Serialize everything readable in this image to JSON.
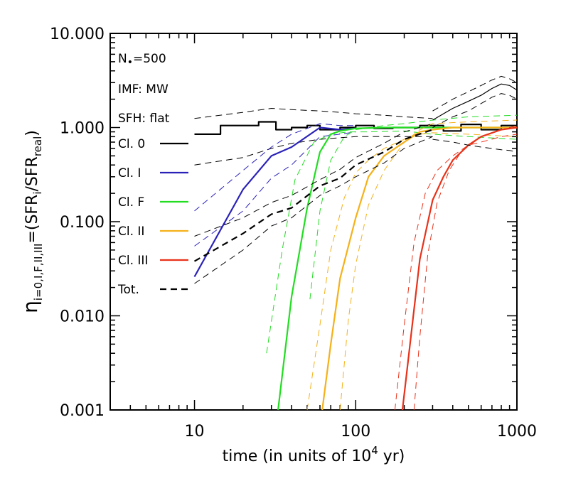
{
  "chart_data": {
    "type": "line",
    "xlabel": "time (in units of 10",
    "xlabel_sup": "4",
    "xlabel_tail": " yr)",
    "ylabel": {
      "eta": "η",
      "sub": "i=0,I,F,II,III",
      "eq": "=(SFR",
      "sub2": "i",
      "mid": "/SFR",
      "sub3": "real",
      "close": ")"
    },
    "x_scale": "log",
    "y_scale": "log",
    "xlim": [
      3,
      1000
    ],
    "ylim": [
      0.001,
      10
    ],
    "x_ticks": [
      10,
      100,
      1000
    ],
    "x_tick_labels": [
      "10",
      "100",
      "1000"
    ],
    "y_ticks": [
      0.001,
      0.01,
      0.1,
      1,
      10
    ],
    "y_tick_labels": [
      "0.001",
      "0.010",
      "0.100",
      "1.000",
      "10.000"
    ],
    "annotations": {
      "nstar": "N",
      "nstar_sub": "•",
      "nstar_val": "=500",
      "imf": "IMF: MW",
      "sfh": "SFH: flat"
    },
    "legend_placement": "left",
    "series": [
      {
        "name": "Cl. 0",
        "color": "#000000",
        "dash": "solid",
        "step": true,
        "x": [
          10,
          14.5,
          14.5,
          25,
          25,
          32,
          32,
          40,
          40,
          50,
          50,
          60,
          60,
          80,
          80,
          100,
          100,
          130,
          130,
          170,
          170,
          250,
          250,
          350,
          350,
          450,
          450,
          600,
          600,
          800,
          800,
          1000
        ],
        "y": [
          0.85,
          0.85,
          1.05,
          1.05,
          1.15,
          1.15,
          0.95,
          0.95,
          1.0,
          1.0,
          1.05,
          1.05,
          0.95,
          0.95,
          1.0,
          1.0,
          1.05,
          1.05,
          0.98,
          0.98,
          1.0,
          1.0,
          1.05,
          1.05,
          0.92,
          0.92,
          1.08,
          1.08,
          0.95,
          0.95,
          1.05,
          1.05
        ],
        "lower": {
          "x": [
            10,
            20,
            30,
            40,
            60,
            80,
            100,
            150,
            200,
            300
          ],
          "y": [
            0.4,
            0.48,
            0.6,
            0.68,
            0.75,
            0.78,
            0.8,
            0.8,
            0.8,
            0.8
          ]
        },
        "upper": {
          "x": [
            10,
            20,
            30,
            40,
            60,
            80,
            100,
            150,
            200,
            300
          ],
          "y": [
            1.25,
            1.45,
            1.6,
            1.55,
            1.5,
            1.45,
            1.4,
            1.35,
            1.3,
            1.25
          ]
        }
      },
      {
        "name": "Cl. I",
        "color": "#2a22b8",
        "dash": "solid",
        "step": false,
        "x": [
          10,
          20,
          30,
          40,
          60,
          80,
          100
        ],
        "y": [
          0.026,
          0.22,
          0.5,
          0.62,
          1.0,
          0.95,
          0.98
        ],
        "lower": {
          "x": [
            10,
            20,
            30,
            40,
            60,
            80,
            100
          ],
          "y": [
            0.055,
            0.13,
            0.29,
            0.4,
            0.8,
            0.85,
            0.9
          ]
        },
        "upper": {
          "x": [
            10,
            20,
            30,
            40,
            60,
            80,
            100
          ],
          "y": [
            0.13,
            0.35,
            0.62,
            0.85,
            1.1,
            1.05,
            1.05
          ]
        }
      },
      {
        "name": "Cl. F",
        "color": "#22dd22",
        "dash": "solid",
        "step": false,
        "x": [
          33,
          40,
          50,
          60,
          70,
          80,
          100,
          150,
          200,
          300,
          500,
          700,
          1000
        ],
        "y": [
          0.001,
          0.016,
          0.14,
          0.55,
          0.85,
          0.92,
          0.98,
          1.0,
          1.0,
          1.0,
          1.0,
          1.0,
          1.0
        ],
        "lower": {
          "x": [
            28,
            35,
            42,
            55,
            70,
            90,
            120,
            200,
            300,
            500,
            1000
          ],
          "y": [
            0.004,
            0.05,
            0.28,
            0.7,
            0.85,
            0.9,
            0.9,
            0.92,
            0.85,
            0.8,
            0.75
          ]
        },
        "upper": {
          "x": [
            52,
            60,
            70,
            85,
            100,
            150,
            200,
            300,
            500,
            1000
          ],
          "y": [
            0.015,
            0.13,
            0.45,
            0.8,
            0.95,
            1.05,
            1.1,
            1.2,
            1.3,
            1.35
          ]
        }
      },
      {
        "name": "Cl. II",
        "color": "#f5b11a",
        "dash": "solid",
        "step": false,
        "x": [
          62,
          70,
          80,
          100,
          120,
          150,
          200,
          250,
          300,
          400,
          600,
          1000
        ],
        "y": [
          0.001,
          0.005,
          0.025,
          0.11,
          0.3,
          0.5,
          0.7,
          0.9,
          0.95,
          1.0,
          1.0,
          1.0
        ],
        "lower": {
          "x": [
            50,
            60,
            70,
            85,
            100,
            120,
            150,
            200,
            250,
            300,
            500,
            1000
          ],
          "y": [
            0.001,
            0.008,
            0.05,
            0.18,
            0.33,
            0.45,
            0.6,
            0.75,
            0.85,
            0.88,
            0.85,
            0.8
          ]
        },
        "upper": {
          "x": [
            80,
            90,
            100,
            120,
            150,
            200,
            250,
            300,
            500,
            1000
          ],
          "y": [
            0.001,
            0.009,
            0.035,
            0.15,
            0.35,
            0.7,
            0.95,
            1.1,
            1.15,
            1.2
          ]
        }
      },
      {
        "name": "Cl. III",
        "color": "#e8321a",
        "dash": "solid",
        "step": false,
        "x": [
          195,
          220,
          250,
          300,
          350,
          400,
          500,
          600,
          800,
          1000
        ],
        "y": [
          0.001,
          0.006,
          0.04,
          0.17,
          0.3,
          0.45,
          0.65,
          0.8,
          0.95,
          1.0
        ],
        "lower": {
          "x": [
            175,
            200,
            230,
            270,
            320,
            400,
            500,
            600,
            800,
            1000
          ],
          "y": [
            0.001,
            0.008,
            0.06,
            0.2,
            0.35,
            0.5,
            0.65,
            0.7,
            0.8,
            0.85
          ]
        },
        "upper": {
          "x": [
            230,
            250,
            280,
            320,
            380,
            450,
            600,
            800,
            1000
          ],
          "y": [
            0.001,
            0.006,
            0.045,
            0.16,
            0.35,
            0.55,
            0.8,
            0.95,
            1.05
          ]
        }
      },
      {
        "name": "Tot.",
        "color": "#000000",
        "dash": "dashed",
        "step": false,
        "x": [
          10,
          20,
          30,
          40,
          60,
          80,
          100,
          150,
          200,
          300
        ],
        "y": [
          0.038,
          0.075,
          0.12,
          0.14,
          0.24,
          0.29,
          0.4,
          0.55,
          0.75,
          0.95
        ],
        "lower": {
          "x": [
            10,
            20,
            30,
            40,
            60,
            80,
            100,
            150,
            200,
            300
          ],
          "y": [
            0.022,
            0.05,
            0.09,
            0.11,
            0.19,
            0.24,
            0.3,
            0.42,
            0.6,
            0.8
          ]
        },
        "upper": {
          "x": [
            10,
            20,
            30,
            40,
            60,
            80,
            100,
            150,
            200,
            300
          ],
          "y": [
            0.07,
            0.11,
            0.16,
            0.19,
            0.28,
            0.36,
            0.48,
            0.68,
            0.9,
            1.1
          ]
        }
      }
    ],
    "extra_curves": [
      {
        "color": "#000000",
        "dash": "solid",
        "x": [
          300,
          400,
          500,
          600,
          700,
          800,
          900,
          1000
        ],
        "y": [
          1.2,
          1.6,
          1.9,
          2.2,
          2.6,
          2.9,
          2.8,
          2.5
        ]
      },
      {
        "color": "#000000",
        "dash": "dashed",
        "x": [
          300,
          400,
          500,
          600,
          700,
          800,
          900,
          1000
        ],
        "y": [
          1.5,
          2.0,
          2.4,
          2.8,
          3.2,
          3.5,
          3.3,
          3.0
        ]
      },
      {
        "color": "#000000",
        "dash": "dashed",
        "x": [
          300,
          400,
          500,
          600,
          700,
          800,
          900,
          1000
        ],
        "y": [
          1.0,
          1.3,
          1.5,
          1.8,
          2.1,
          2.3,
          2.2,
          2.0
        ]
      },
      {
        "color": "#000000",
        "dash": "dashed",
        "x": [
          300,
          400,
          500,
          600,
          700,
          800,
          900,
          1000
        ],
        "y": [
          0.75,
          0.7,
          0.65,
          0.62,
          0.6,
          0.58,
          0.57,
          0.55
        ]
      }
    ]
  }
}
